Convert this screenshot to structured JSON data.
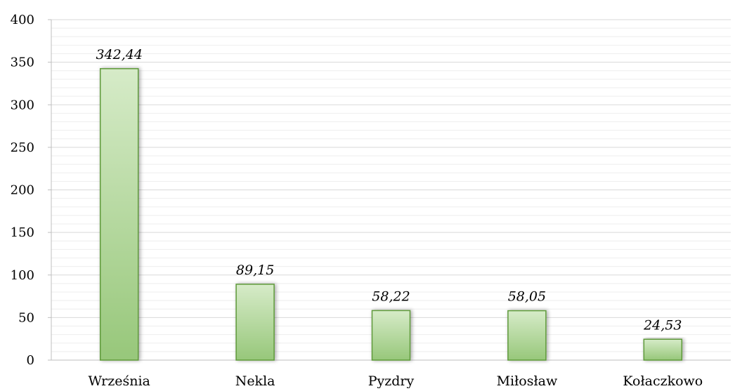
{
  "chart_data": {
    "type": "bar",
    "categories": [
      "Września",
      "Nekla",
      "Pyzdry",
      "Miłosław",
      "Kołaczkowo"
    ],
    "values": [
      342.44,
      89.15,
      58.22,
      58.05,
      24.53
    ],
    "value_labels": [
      "342,44",
      "89,15",
      "58,22",
      "58,05",
      "24,53"
    ],
    "title": "",
    "xlabel": "",
    "ylabel": "",
    "ylim": [
      0,
      400
    ],
    "yticks": [
      0,
      50,
      100,
      150,
      200,
      250,
      300,
      350,
      400
    ],
    "ytick_labels": [
      "0",
      "50",
      "100",
      "150",
      "200",
      "250",
      "300",
      "350",
      "400"
    ],
    "grid": true,
    "legend": "none",
    "colors": {
      "bar_light": "#d6ebc8",
      "bar_dark": "#97c77a",
      "bar_border": "#5f9a3a",
      "grid_major": "#d9d9d9",
      "grid_minor": "#eeeeee",
      "axis": "#bfbfbf"
    }
  }
}
